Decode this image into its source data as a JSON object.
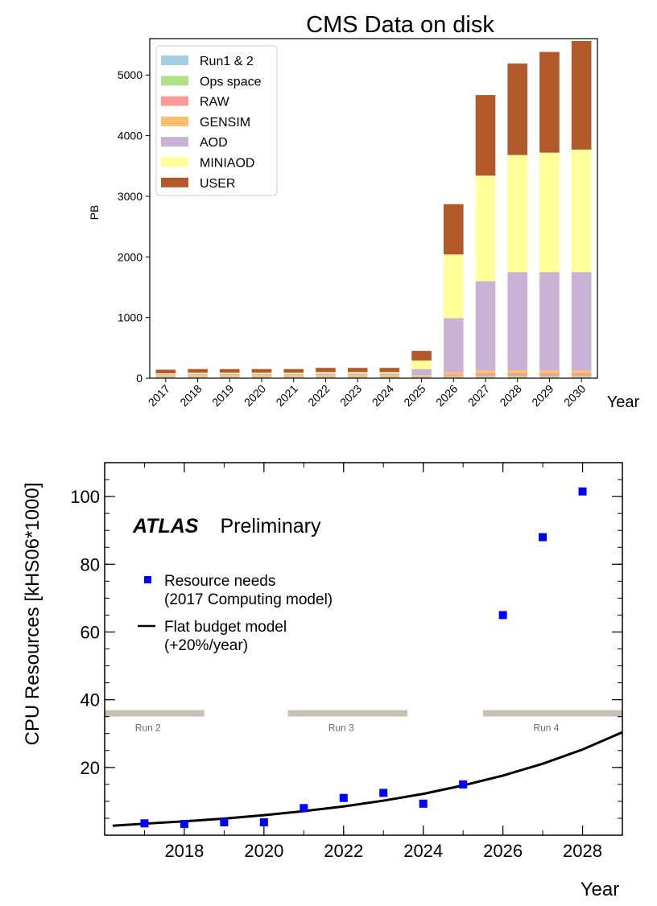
{
  "chart_data": [
    {
      "type": "bar",
      "stacked": true,
      "title": "CMS Data on disk",
      "xlabel": "Year",
      "ylabel": "PB",
      "ylim": [
        0,
        5600
      ],
      "yticks": [
        0,
        1000,
        2000,
        3000,
        4000,
        5000
      ],
      "legend_position": "top-left",
      "categories": [
        "2017",
        "2018",
        "2019",
        "2020",
        "2021",
        "2022",
        "2023",
        "2024",
        "2025",
        "2026",
        "2027",
        "2028",
        "2029",
        "2030"
      ],
      "series": [
        {
          "name": "Run1 & 2",
          "color": "#a6cee3",
          "values": [
            10,
            10,
            10,
            10,
            10,
            10,
            10,
            10,
            10,
            10,
            10,
            10,
            10,
            10
          ]
        },
        {
          "name": "Ops space",
          "color": "#b2df8a",
          "values": [
            10,
            10,
            10,
            10,
            10,
            10,
            10,
            10,
            10,
            20,
            30,
            30,
            30,
            30
          ]
        },
        {
          "name": "RAW",
          "color": "#fb9a99",
          "values": [
            10,
            10,
            10,
            10,
            10,
            10,
            10,
            10,
            10,
            30,
            40,
            40,
            40,
            40
          ]
        },
        {
          "name": "GENSIM",
          "color": "#fdbf6f",
          "values": [
            20,
            20,
            20,
            20,
            20,
            20,
            20,
            20,
            20,
            40,
            50,
            50,
            50,
            50
          ]
        },
        {
          "name": "AOD",
          "color": "#cab2d6",
          "values": [
            15,
            20,
            20,
            20,
            20,
            25,
            25,
            25,
            100,
            890,
            1470,
            1620,
            1620,
            1620
          ]
        },
        {
          "name": "MINIAOD",
          "color": "#ffff99",
          "values": [
            15,
            20,
            20,
            20,
            20,
            25,
            25,
            25,
            140,
            1050,
            1740,
            1930,
            1970,
            2020
          ]
        },
        {
          "name": "USER",
          "color": "#b15928",
          "values": [
            60,
            60,
            60,
            60,
            60,
            70,
            70,
            70,
            160,
            830,
            1330,
            1510,
            1660,
            1790
          ]
        }
      ]
    },
    {
      "type": "scatter",
      "title": "",
      "brand": "ATLAS",
      "brand_suffix": "Preliminary",
      "xlabel": "Year",
      "ylabel": "CPU Resources [kHS06*1000]",
      "xlim": [
        2016,
        2029
      ],
      "ylim": [
        0,
        110
      ],
      "xticks": [
        2018,
        2020,
        2022,
        2024,
        2026,
        2028
      ],
      "yticks": [
        20,
        40,
        60,
        80,
        100
      ],
      "series": [
        {
          "name": "Resource needs",
          "name_line2": "(2017 Computing model)",
          "color": "#0000ff",
          "marker": "square",
          "x": [
            2017,
            2018,
            2019,
            2020,
            2021,
            2022,
            2023,
            2024,
            2025,
            2026,
            2027,
            2028
          ],
          "y": [
            3.5,
            3.3,
            3.8,
            3.8,
            8,
            11,
            12.5,
            9.3,
            15,
            65,
            88,
            101.5
          ]
        },
        {
          "name": "Flat budget model",
          "name_line2": "(+20%/year)",
          "color": "#000000",
          "type": "line",
          "x": [
            2016.2,
            2017,
            2018,
            2019,
            2020,
            2021,
            2022,
            2023,
            2024,
            2025,
            2026,
            2027,
            2028,
            2029
          ],
          "y": [
            2.8,
            3.4,
            4.1,
            4.9,
            5.9,
            7.1,
            8.5,
            10.2,
            12.2,
            14.7,
            17.6,
            21.1,
            25.3,
            30.4
          ]
        }
      ],
      "run_periods": [
        {
          "label": "Run 2",
          "start": 2016,
          "end": 2018.5,
          "y": 36
        },
        {
          "label": "Run 3",
          "start": 2020.6,
          "end": 2023.6,
          "y": 36
        },
        {
          "label": "Run 4",
          "start": 2025.5,
          "end": 2029,
          "y": 36
        }
      ],
      "run_bar_color": "#c8beb2"
    }
  ]
}
